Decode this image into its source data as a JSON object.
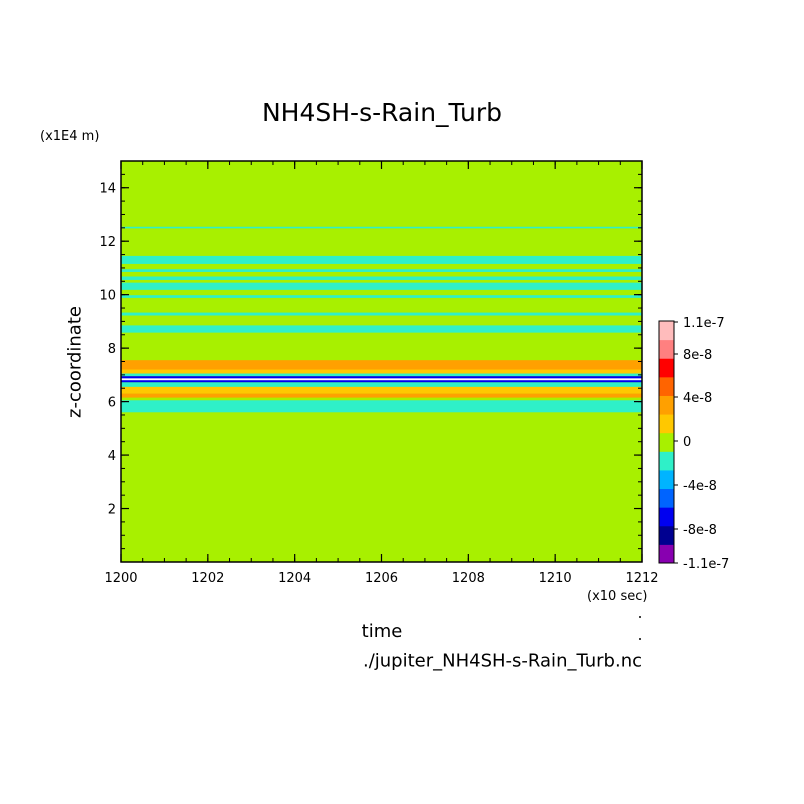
{
  "chart_data": {
    "type": "heatmap",
    "title": "NH4SH-s-Rain_Turb",
    "ylabel": "z-coordinate",
    "xlabel": "time",
    "yunit": "(x1E4 m)",
    "xunit": "(x10 sec)",
    "xlim": [
      1200,
      1212
    ],
    "ylim": [
      0,
      15
    ],
    "xticks": [
      "1200",
      "1202",
      "1204",
      "1206",
      "1208",
      "1210",
      "1212"
    ],
    "yticks": [
      "2",
      "4",
      "6",
      "8",
      "10",
      "12",
      "14"
    ],
    "background_color": "#a8f000",
    "bands": [
      {
        "y0": 12.48,
        "y1": 12.54,
        "color": "#2ff0c8"
      },
      {
        "y0": 11.15,
        "y1": 11.45,
        "color": "#2ff0c8"
      },
      {
        "y0": 10.85,
        "y1": 10.95,
        "color": "#2ff0c8"
      },
      {
        "y0": 10.55,
        "y1": 10.68,
        "color": "#2ff0c8"
      },
      {
        "y0": 10.18,
        "y1": 10.45,
        "color": "#2ff0c8"
      },
      {
        "y0": 9.88,
        "y1": 9.98,
        "color": "#2ff0c8"
      },
      {
        "y0": 9.22,
        "y1": 9.33,
        "color": "#2ff0c8"
      },
      {
        "y0": 8.58,
        "y1": 8.85,
        "color": "#2ff0c8"
      },
      {
        "y0": 7.2,
        "y1": 7.55,
        "color": "#ffa000"
      },
      {
        "y0": 7.05,
        "y1": 7.2,
        "color": "#ffc800"
      },
      {
        "y0": 6.95,
        "y1": 7.05,
        "color": "#2ff0c8"
      },
      {
        "y0": 6.72,
        "y1": 6.95,
        "color": "#0000f0"
      },
      {
        "y0": 6.8,
        "y1": 6.87,
        "color": "#ffffff"
      },
      {
        "y0": 6.55,
        "y1": 6.72,
        "color": "#2ff0c8"
      },
      {
        "y0": 6.3,
        "y1": 6.55,
        "color": "#ffc800"
      },
      {
        "y0": 6.15,
        "y1": 6.3,
        "color": "#ffa000"
      },
      {
        "y0": 5.6,
        "y1": 6.05,
        "color": "#2ff0c8"
      }
    ],
    "colorbar": {
      "labels": [
        "1.1e-7",
        "8e-8",
        "4e-8",
        "0",
        "-4e-8",
        "-8e-8",
        "-1.1e-7"
      ],
      "colors": [
        "#8800b0",
        "#000090",
        "#0000f0",
        "#0064ff",
        "#00b4ff",
        "#2ff0c8",
        "#a8f000",
        "#ffc800",
        "#ffa000",
        "#ff6400",
        "#ff0000",
        "#ff8080",
        "#ffbcbc"
      ]
    },
    "source": "./jupiter_NH4SH-s-Rain_Turb.nc"
  }
}
